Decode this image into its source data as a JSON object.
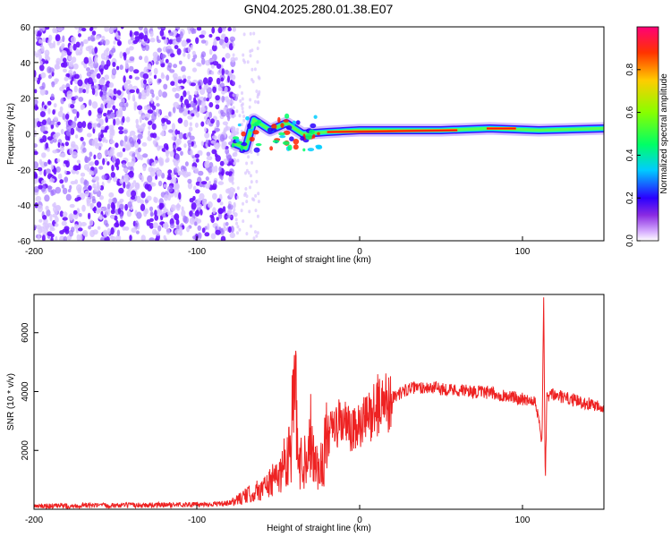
{
  "title": "GN04.2025.280.01.38.E07",
  "colors": {
    "line": "#ee2222",
    "axis": "#000000"
  },
  "chart_data": [
    {
      "type": "heatmap",
      "xlabel": "Height of straight line (km)",
      "ylabel": "Frequency (Hz)",
      "xlim": [
        -200,
        150
      ],
      "ylim": [
        -60,
        60
      ],
      "x_ticks": [
        -200,
        -100,
        0,
        100
      ],
      "x_tick_labels": [
        "-200",
        "-100",
        "0",
        "100"
      ],
      "y_ticks": [
        -60,
        -40,
        -20,
        0,
        20,
        40,
        60
      ],
      "y_tick_labels": [
        "-60",
        "-40",
        "-20",
        "0",
        "20",
        "40",
        "60"
      ],
      "colorbar": {
        "label": "Normalized spectral amplitude",
        "range": [
          0,
          1
        ],
        "ticks": [
          0,
          0.2,
          0.4,
          0.6,
          0.8
        ],
        "tick_labels": [
          "0.0",
          "0.2",
          "0.4",
          "0.6",
          "0.8"
        ]
      },
      "features": {
        "noise_region_x": [
          -200,
          -78
        ],
        "signal_track": [
          {
            "x": -78,
            "f": -5
          },
          {
            "x": -70,
            "f": -8
          },
          {
            "x": -65,
            "f": 8
          },
          {
            "x": -55,
            "f": 2
          },
          {
            "x": -45,
            "f": 6
          },
          {
            "x": -35,
            "f": 0
          },
          {
            "x": -20,
            "f": 1
          },
          {
            "x": 0,
            "f": 2
          },
          {
            "x": 50,
            "f": 2
          },
          {
            "x": 80,
            "f": 3
          },
          {
            "x": 110,
            "f": 2
          },
          {
            "x": 150,
            "f": 3
          }
        ]
      }
    },
    {
      "type": "line",
      "xlabel": "Height of straight line (km)",
      "ylabel": "SNR (10 * v/v)",
      "xlim": [
        -200,
        150
      ],
      "ylim": [
        0,
        7300
      ],
      "x_ticks": [
        -200,
        -100,
        0,
        100
      ],
      "x_tick_labels": [
        "-200",
        "-100",
        "0",
        "100"
      ],
      "y_ticks": [
        2000,
        4000,
        6000
      ],
      "y_tick_labels": [
        "2000",
        "4000",
        "6000"
      ],
      "series": [
        {
          "x": [
            -200,
            -150,
            -100,
            -80,
            -70,
            -60,
            -50,
            -42,
            -40,
            -38,
            -35,
            -30,
            -25,
            -20,
            -15,
            -10,
            -5,
            0,
            5,
            10,
            20,
            30,
            40,
            50,
            60,
            70,
            80,
            90,
            100,
            108,
            112,
            113,
            114,
            115,
            118,
            125,
            135,
            150
          ],
          "y": [
            100,
            130,
            160,
            200,
            450,
            700,
            1100,
            2200,
            4800,
            1800,
            1500,
            2500,
            1200,
            2400,
            2800,
            3000,
            2600,
            2800,
            3100,
            3500,
            3800,
            4100,
            4150,
            4100,
            4050,
            4000,
            3950,
            3850,
            3750,
            3700,
            2300,
            7200,
            900,
            3800,
            3900,
            3800,
            3650,
            3500
          ]
        }
      ]
    }
  ]
}
